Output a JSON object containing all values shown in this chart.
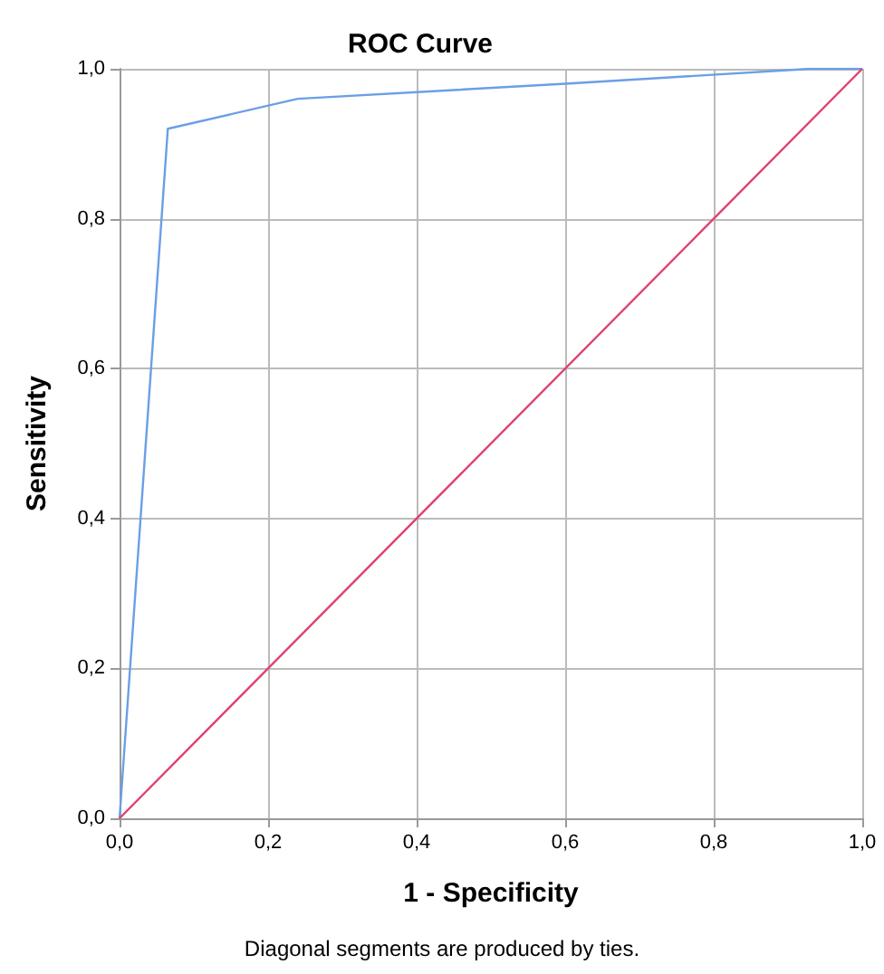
{
  "chart_data": {
    "type": "line",
    "title": "ROC Curve",
    "xlabel": "1 - Specificity",
    "ylabel": "Sensitivity",
    "annotations": [
      "Diagonal segments are produced by ties."
    ],
    "series": [
      {
        "color": "#6a9fe6",
        "x": [
          0,
          0.065,
          0.24,
          0.6,
          0.93,
          1
        ],
        "values": [
          0,
          0.92,
          0.96,
          0.98,
          1,
          1
        ]
      },
      {
        "color": "#e0406a",
        "x": [
          0,
          1
        ],
        "values": [
          0,
          1
        ]
      }
    ],
    "xlim": [
      0,
      1
    ],
    "ylim": [
      0,
      1
    ],
    "xticks": [
      {
        "value": 0,
        "label": "0,0"
      },
      {
        "value": 0.2,
        "label": "0,2"
      },
      {
        "value": 0.4,
        "label": "0,4"
      },
      {
        "value": 0.6,
        "label": "0,6"
      },
      {
        "value": 0.8,
        "label": "0,8"
      },
      {
        "value": 1,
        "label": "1,0"
      }
    ],
    "yticks": [
      {
        "value": 0,
        "label": "0,0"
      },
      {
        "value": 0.2,
        "label": "0,2"
      },
      {
        "value": 0.4,
        "label": "0,4"
      },
      {
        "value": 0.6,
        "label": "0,6"
      },
      {
        "value": 0.8,
        "label": "0,8"
      },
      {
        "value": 1,
        "label": "1,0"
      }
    ],
    "grid": true,
    "marker": "none",
    "line_style": "solid"
  }
}
